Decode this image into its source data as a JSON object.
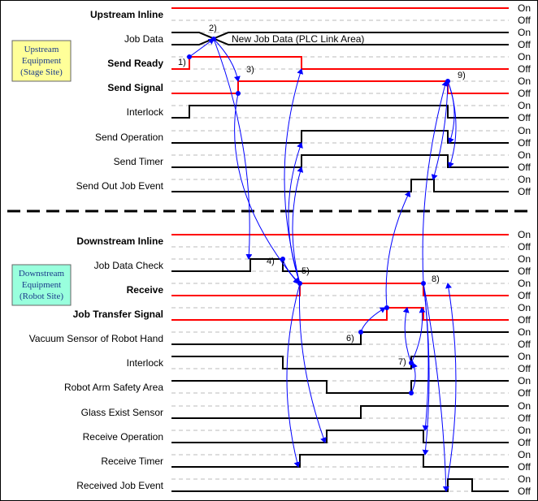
{
  "equipment_boxes": [
    {
      "id": "upstream",
      "lines": [
        "Upstream",
        "Equipment",
        "(Stage Site)"
      ],
      "fill": "#ffff99"
    },
    {
      "id": "downstream",
      "lines": [
        "Downstream",
        "Equipment",
        "(Robot Site)"
      ],
      "fill": "#99ffdd"
    }
  ],
  "states": {
    "on": "On",
    "off": "Off"
  },
  "job_data_note": "New Job Data (PLC Link Area)",
  "signals": [
    {
      "label": "Upstream Inline",
      "bold": true,
      "color": "red",
      "kind": "level",
      "init": 1,
      "edges": []
    },
    {
      "label": "Job Data",
      "bold": false,
      "color": "black",
      "kind": "bus",
      "cross": 262
    },
    {
      "label": "Send Ready",
      "bold": true,
      "color": "red",
      "kind": "level",
      "init": 0,
      "edges": [
        232,
        370
      ]
    },
    {
      "label": "Send Signal",
      "bold": true,
      "color": "red",
      "kind": "level",
      "init": 0,
      "edges": [
        292,
        550
      ]
    },
    {
      "label": "Interlock",
      "bold": false,
      "color": "black",
      "kind": "level",
      "init": 0,
      "edges": [
        232,
        550
      ]
    },
    {
      "label": "Send Operation",
      "bold": false,
      "color": "black",
      "kind": "level",
      "init": 0,
      "edges": [
        370,
        550
      ]
    },
    {
      "label": "Send Timer",
      "bold": false,
      "color": "black",
      "kind": "level",
      "init": 0,
      "edges": [
        370,
        550
      ]
    },
    {
      "label": "Send Out Job Event",
      "bold": false,
      "color": "black",
      "kind": "level",
      "init": 0,
      "edges": [
        505,
        533
      ]
    },
    {
      "label": "Downstream Inline",
      "bold": true,
      "color": "red",
      "kind": "level",
      "init": 1,
      "edges": []
    },
    {
      "label": "Job Data Check",
      "bold": false,
      "color": "black",
      "kind": "level",
      "init": 0,
      "edges": [
        307,
        347
      ]
    },
    {
      "label": "Receive",
      "bold": true,
      "color": "red",
      "kind": "level",
      "init": 0,
      "edges": [
        368,
        520
      ]
    },
    {
      "label": "Job Transfer Signal",
      "bold": true,
      "color": "red",
      "kind": "level",
      "init": 0,
      "edges": [
        475,
        520
      ]
    },
    {
      "label": "Vacuum Sensor of Robot Hand",
      "bold": false,
      "color": "black",
      "kind": "level",
      "init": 0,
      "edges": [
        443
      ]
    },
    {
      "label": "Interlock",
      "bold": false,
      "color": "black",
      "kind": "level",
      "init": 1,
      "edges": [
        347,
        505
      ]
    },
    {
      "label": "Robot Arm Safety Area",
      "bold": false,
      "color": "black",
      "kind": "level",
      "init": 1,
      "edges": [
        401,
        505
      ]
    },
    {
      "label": "Glass Exist Sensor",
      "bold": false,
      "color": "black",
      "kind": "level",
      "init": 0,
      "edges": [
        443
      ]
    },
    {
      "label": "Receive Operation",
      "bold": false,
      "color": "black",
      "kind": "level",
      "init": 0,
      "edges": [
        401,
        520
      ]
    },
    {
      "label": "Receive Timer",
      "bold": false,
      "color": "black",
      "kind": "level",
      "init": 0,
      "edges": [
        368,
        520
      ]
    },
    {
      "label": "Received Job Event",
      "bold": false,
      "color": "black",
      "kind": "level",
      "init": 0,
      "edges": [
        550,
        580
      ]
    }
  ],
  "steps": [
    {
      "label": "1)",
      "sig": 2,
      "t": 232,
      "dx": -14,
      "dy": 2
    },
    {
      "label": "2)",
      "sig": 1,
      "t": 262,
      "dx": -6,
      "dy": -10
    },
    {
      "label": "3)",
      "sig": 3,
      "t": 292,
      "dx": 10,
      "dy": -19
    },
    {
      "label": "4)",
      "sig": 9,
      "t": 347,
      "dx": -20,
      "dy": -2
    },
    {
      "label": "5)",
      "sig": 10,
      "t": 368,
      "dx": 2,
      "dy": -20
    },
    {
      "label": "6)",
      "sig": 12,
      "t": 443,
      "dx": -18,
      "dy": 3
    },
    {
      "label": "7)",
      "sig": 13,
      "t": 505,
      "dx": -16,
      "dy": 2
    },
    {
      "label": "8)",
      "sig": 10,
      "t": 520,
      "dx": 10,
      "dy": -10
    },
    {
      "label": "9)",
      "sig": 3,
      "t": 550,
      "dx": 12,
      "dy": -12
    }
  ],
  "colors": {
    "red": "#ff0000",
    "black": "#000000",
    "arrow": "#0000ff",
    "guide": "#bbbbbb"
  }
}
